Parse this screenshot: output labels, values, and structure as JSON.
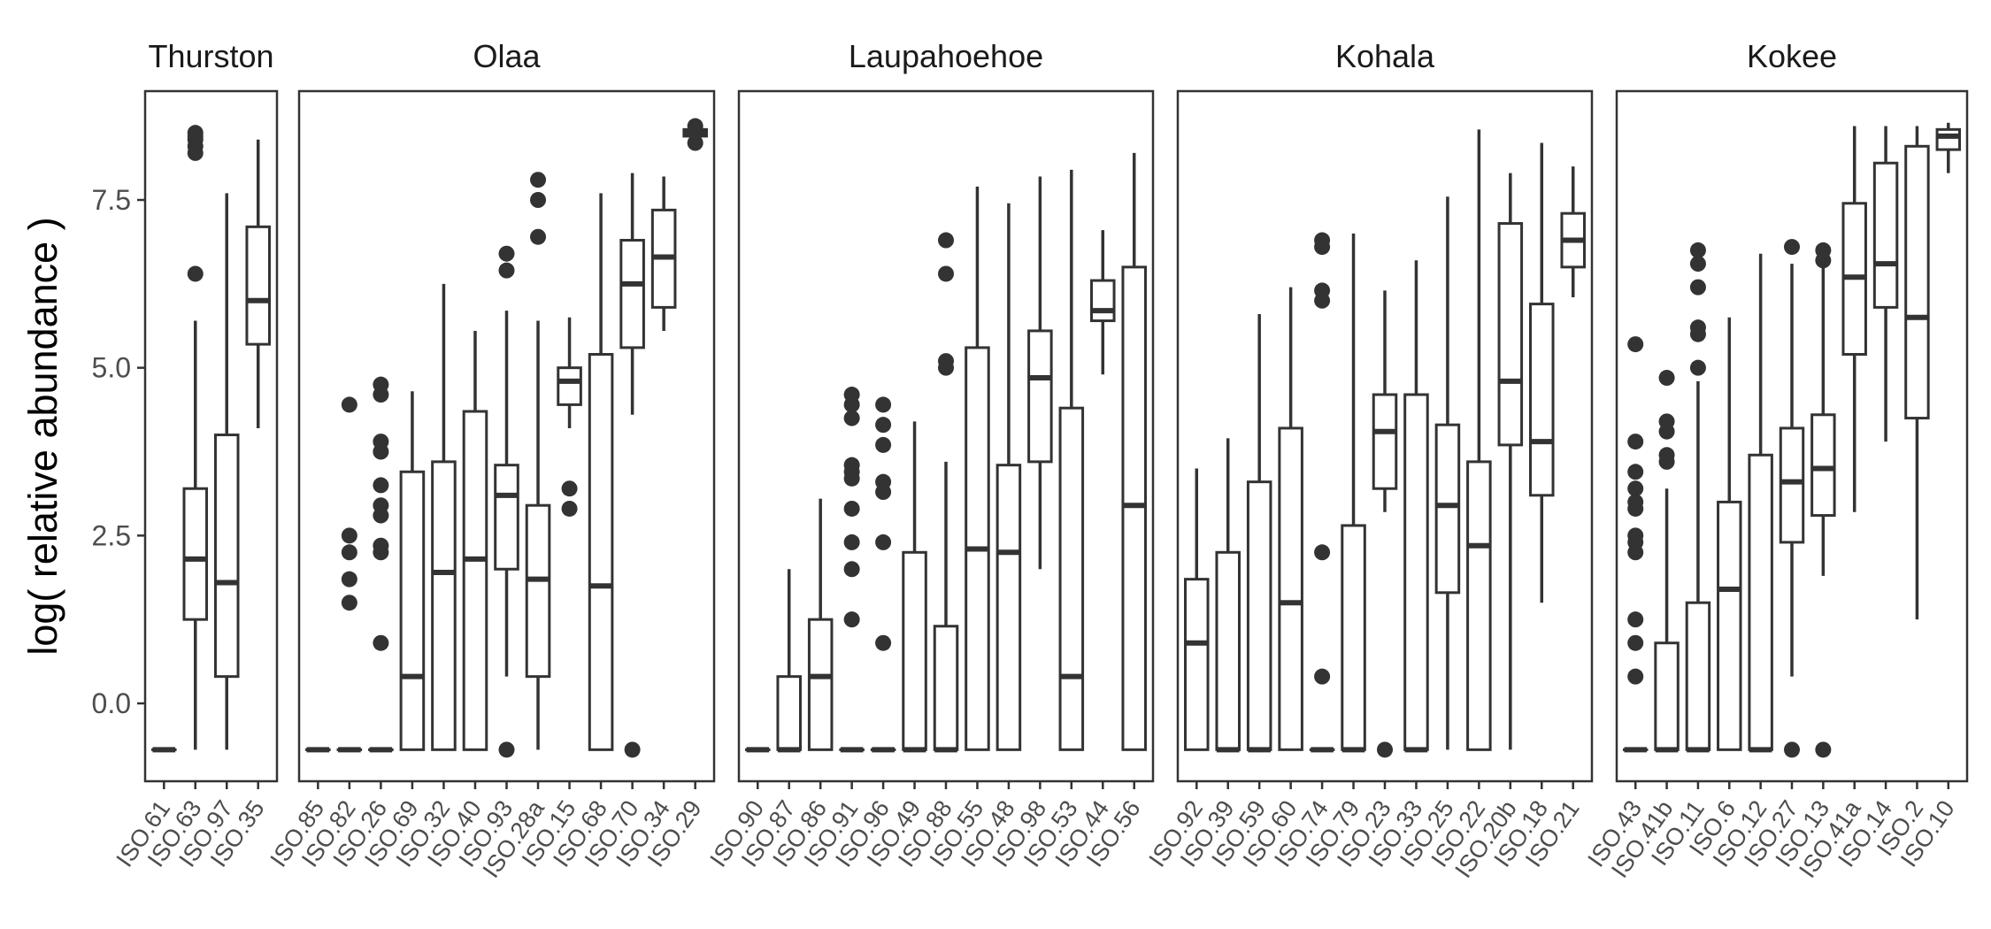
{
  "chart_data": {
    "type": "boxplot",
    "ylabel": "log( relative abundance )",
    "xlabel": "",
    "ylim": [
      -1.15,
      8.95
    ],
    "yticks": [
      0.0,
      2.5,
      5.0,
      7.5
    ],
    "ytick_labels": [
      "0.0",
      "2.5",
      "5.0",
      "7.5"
    ],
    "grid": false,
    "colors": {
      "box_stroke": "#333333",
      "panel_border": "#333333",
      "text": "#1a1a1a"
    },
    "facets": [
      {
        "title": "Thurston",
        "categories": [
          "ISO.61",
          "ISO.63",
          "ISO.97",
          "ISO.35"
        ],
        "boxes": [
          {
            "min": -0.69,
            "q1": -0.69,
            "median": -0.69,
            "q3": -0.69,
            "max": -0.69,
            "outliers": []
          },
          {
            "min": -0.69,
            "q1": 1.25,
            "median": 2.15,
            "q3": 3.2,
            "max": 5.7,
            "outliers": [
              6.4,
              8.2,
              8.3,
              8.4,
              8.45,
              8.5
            ]
          },
          {
            "min": -0.69,
            "q1": 0.4,
            "median": 1.8,
            "q3": 4.0,
            "max": 7.6,
            "outliers": []
          },
          {
            "min": 4.1,
            "q1": 5.35,
            "median": 6.0,
            "q3": 7.1,
            "max": 8.4,
            "outliers": []
          }
        ]
      },
      {
        "title": "Olaa",
        "categories": [
          "ISO.85",
          "ISO.82",
          "ISO.26",
          "ISO.69",
          "ISO.32",
          "ISO.40",
          "ISO.93",
          "ISO.28a",
          "ISO.15",
          "ISO.68",
          "ISO.70",
          "ISO.34",
          "ISO.29"
        ],
        "boxes": [
          {
            "min": -0.69,
            "q1": -0.69,
            "median": -0.69,
            "q3": -0.69,
            "max": -0.69,
            "outliers": []
          },
          {
            "min": -0.69,
            "q1": -0.69,
            "median": -0.69,
            "q3": -0.69,
            "max": -0.69,
            "outliers": [
              1.5,
              1.85,
              2.25,
              2.5,
              4.45
            ]
          },
          {
            "min": -0.69,
            "q1": -0.69,
            "median": -0.69,
            "q3": -0.69,
            "max": -0.69,
            "outliers": [
              0.9,
              2.25,
              2.35,
              2.8,
              2.95,
              3.25,
              3.75,
              3.9,
              4.6,
              4.75
            ]
          },
          {
            "min": -0.69,
            "q1": -0.69,
            "median": 0.4,
            "q3": 3.45,
            "max": 4.65,
            "outliers": []
          },
          {
            "min": -0.69,
            "q1": -0.69,
            "median": 1.95,
            "q3": 3.6,
            "max": 6.25,
            "outliers": []
          },
          {
            "min": -0.69,
            "q1": -0.69,
            "median": 2.15,
            "q3": 4.35,
            "max": 5.55,
            "outliers": []
          },
          {
            "min": 0.4,
            "q1": 2.0,
            "median": 3.1,
            "q3": 3.55,
            "max": 5.85,
            "outliers": [
              -0.69,
              6.45,
              6.7
            ]
          },
          {
            "min": -0.69,
            "q1": 0.4,
            "median": 1.85,
            "q3": 2.95,
            "max": 5.7,
            "outliers": [
              6.95,
              7.5,
              7.8
            ]
          },
          {
            "min": 4.1,
            "q1": 4.45,
            "median": 4.8,
            "q3": 5.0,
            "max": 5.75,
            "outliers": [
              2.9,
              3.2
            ]
          },
          {
            "min": -0.69,
            "q1": -0.69,
            "median": 1.75,
            "q3": 5.2,
            "max": 7.6,
            "outliers": []
          },
          {
            "min": 4.3,
            "q1": 5.3,
            "median": 6.25,
            "q3": 6.9,
            "max": 7.9,
            "outliers": [
              -0.69
            ]
          },
          {
            "min": 5.55,
            "q1": 5.9,
            "median": 6.65,
            "q3": 7.35,
            "max": 7.85,
            "outliers": []
          },
          {
            "min": 8.4,
            "q1": 8.45,
            "median": 8.5,
            "q3": 8.55,
            "max": 8.6,
            "outliers": [
              8.35,
              8.6
            ]
          }
        ]
      },
      {
        "title": "Laupahoehoe",
        "categories": [
          "ISO.90",
          "ISO.87",
          "ISO.86",
          "ISO.91",
          "ISO.96",
          "ISO.49",
          "ISO.88",
          "ISO.55",
          "ISO.48",
          "ISO.98",
          "ISO.53",
          "ISO.44",
          "ISO.56"
        ],
        "boxes": [
          {
            "min": -0.69,
            "q1": -0.69,
            "median": -0.69,
            "q3": -0.69,
            "max": -0.69,
            "outliers": []
          },
          {
            "min": -0.69,
            "q1": -0.69,
            "median": -0.69,
            "q3": 0.4,
            "max": 2.0,
            "outliers": []
          },
          {
            "min": -0.69,
            "q1": -0.69,
            "median": 0.4,
            "q3": 1.25,
            "max": 3.05,
            "outliers": []
          },
          {
            "min": -0.69,
            "q1": -0.69,
            "median": -0.69,
            "q3": -0.69,
            "max": -0.69,
            "outliers": [
              1.25,
              2.0,
              2.4,
              2.9,
              3.35,
              3.45,
              3.55,
              4.25,
              4.45,
              4.6
            ]
          },
          {
            "min": -0.69,
            "q1": -0.69,
            "median": -0.69,
            "q3": -0.69,
            "max": -0.69,
            "outliers": [
              0.9,
              2.4,
              3.15,
              3.3,
              3.85,
              4.15,
              4.45
            ]
          },
          {
            "min": -0.69,
            "q1": -0.69,
            "median": -0.69,
            "q3": 2.25,
            "max": 4.2,
            "outliers": []
          },
          {
            "min": -0.69,
            "q1": -0.69,
            "median": -0.69,
            "q3": 1.15,
            "max": 3.6,
            "outliers": [
              5.0,
              5.1,
              6.4,
              6.9
            ]
          },
          {
            "min": -0.69,
            "q1": -0.69,
            "median": 2.3,
            "q3": 5.3,
            "max": 7.7,
            "outliers": []
          },
          {
            "min": -0.69,
            "q1": -0.69,
            "median": 2.25,
            "q3": 3.55,
            "max": 7.45,
            "outliers": []
          },
          {
            "min": 2.0,
            "q1": 3.6,
            "median": 4.85,
            "q3": 5.55,
            "max": 7.85,
            "outliers": []
          },
          {
            "min": -0.69,
            "q1": -0.69,
            "median": 0.4,
            "q3": 4.4,
            "max": 7.95,
            "outliers": []
          },
          {
            "min": 4.9,
            "q1": 5.7,
            "median": 5.85,
            "q3": 6.3,
            "max": 7.05,
            "outliers": []
          },
          {
            "min": -0.69,
            "q1": -0.69,
            "median": 2.95,
            "q3": 6.5,
            "max": 8.2,
            "outliers": []
          }
        ]
      },
      {
        "title": "Kohala",
        "categories": [
          "ISO.92",
          "ISO.39",
          "ISO.59",
          "ISO.60",
          "ISO.74",
          "ISO.79",
          "ISO.23",
          "ISO.33",
          "ISO.25",
          "ISO.22",
          "ISO.20b",
          "ISO.18",
          "ISO.21"
        ],
        "boxes": [
          {
            "min": -0.69,
            "q1": -0.69,
            "median": 0.9,
            "q3": 1.85,
            "max": 3.5,
            "outliers": []
          },
          {
            "min": -0.69,
            "q1": -0.69,
            "median": -0.69,
            "q3": 2.25,
            "max": 3.95,
            "outliers": []
          },
          {
            "min": -0.69,
            "q1": -0.69,
            "median": -0.69,
            "q3": 3.3,
            "max": 5.8,
            "outliers": []
          },
          {
            "min": -0.69,
            "q1": -0.69,
            "median": 1.5,
            "q3": 4.1,
            "max": 6.2,
            "outliers": []
          },
          {
            "min": -0.69,
            "q1": -0.69,
            "median": -0.69,
            "q3": -0.69,
            "max": -0.69,
            "outliers": [
              0.4,
              2.25,
              6.0,
              6.15,
              6.8,
              6.9
            ]
          },
          {
            "min": -0.69,
            "q1": -0.69,
            "median": -0.69,
            "q3": 2.65,
            "max": 7.0,
            "outliers": []
          },
          {
            "min": 2.85,
            "q1": 3.2,
            "median": 4.05,
            "q3": 4.6,
            "max": 6.15,
            "outliers": [
              -0.69
            ]
          },
          {
            "min": -0.69,
            "q1": -0.69,
            "median": -0.69,
            "q3": 4.6,
            "max": 6.6,
            "outliers": []
          },
          {
            "min": -0.69,
            "q1": 1.65,
            "median": 2.95,
            "q3": 4.15,
            "max": 7.55,
            "outliers": []
          },
          {
            "min": -0.69,
            "q1": -0.69,
            "median": 2.35,
            "q3": 3.6,
            "max": 8.55,
            "outliers": []
          },
          {
            "min": -0.69,
            "q1": 3.85,
            "median": 4.8,
            "q3": 7.15,
            "max": 7.9,
            "outliers": []
          },
          {
            "min": 1.5,
            "q1": 3.1,
            "median": 3.9,
            "q3": 5.95,
            "max": 8.35,
            "outliers": []
          },
          {
            "min": 6.05,
            "q1": 6.5,
            "median": 6.9,
            "q3": 7.3,
            "max": 8.0,
            "outliers": []
          }
        ]
      },
      {
        "title": "Kokee",
        "categories": [
          "ISO.43",
          "ISO.41b",
          "ISO.11",
          "ISO.6",
          "ISO.12",
          "ISO.27",
          "ISO.13",
          "ISO.41a",
          "ISO.14",
          "ISO.2",
          "ISO.10"
        ],
        "boxes": [
          {
            "min": -0.69,
            "q1": -0.69,
            "median": -0.69,
            "q3": -0.69,
            "max": -0.69,
            "outliers": [
              0.4,
              0.9,
              1.25,
              2.25,
              2.4,
              2.5,
              2.9,
              3.0,
              3.2,
              3.45,
              3.9,
              5.35
            ]
          },
          {
            "min": -0.69,
            "q1": -0.69,
            "median": -0.69,
            "q3": 0.9,
            "max": 3.2,
            "outliers": [
              3.6,
              3.7,
              4.05,
              4.2,
              4.85
            ]
          },
          {
            "min": -0.69,
            "q1": -0.69,
            "median": -0.69,
            "q3": 1.5,
            "max": 4.8,
            "outliers": [
              5.0,
              5.5,
              5.6,
              6.2,
              6.55,
              6.75
            ]
          },
          {
            "min": -0.69,
            "q1": -0.69,
            "median": 1.7,
            "q3": 3.0,
            "max": 5.75,
            "outliers": []
          },
          {
            "min": -0.69,
            "q1": -0.69,
            "median": -0.69,
            "q3": 3.7,
            "max": 6.7,
            "outliers": []
          },
          {
            "min": 0.4,
            "q1": 2.4,
            "median": 3.3,
            "q3": 4.1,
            "max": 6.55,
            "outliers": [
              -0.69,
              6.8
            ]
          },
          {
            "min": 1.9,
            "q1": 2.8,
            "median": 3.5,
            "q3": 4.3,
            "max": 6.55,
            "outliers": [
              -0.69,
              6.6,
              6.75
            ]
          },
          {
            "min": 2.85,
            "q1": 5.2,
            "median": 6.35,
            "q3": 7.45,
            "max": 8.6,
            "outliers": []
          },
          {
            "min": 3.9,
            "q1": 5.9,
            "median": 6.55,
            "q3": 8.05,
            "max": 8.6,
            "outliers": []
          },
          {
            "min": 1.25,
            "q1": 4.25,
            "median": 5.75,
            "q3": 8.3,
            "max": 8.6,
            "outliers": []
          },
          {
            "min": 7.9,
            "q1": 8.25,
            "median": 8.45,
            "q3": 8.55,
            "max": 8.65,
            "outliers": []
          }
        ]
      }
    ]
  }
}
